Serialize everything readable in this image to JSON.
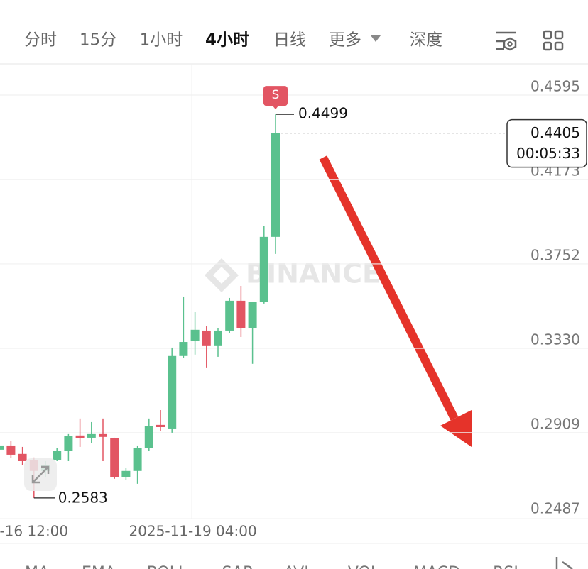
{
  "tabs": [
    "分时",
    "15分",
    "1小时",
    "4小时",
    "日线",
    "更多",
    "深度"
  ],
  "active_tab": 3,
  "indicators": [
    "MA",
    "EMA",
    "BOLL",
    "SAR",
    "AVL",
    "VOL",
    "MACD",
    "RSI"
  ],
  "chart_data": {
    "type": "candlestick",
    "watermark": "BINANCE",
    "signal_label": "S",
    "countdown": "00:05:33",
    "up_color": "#5ac18e",
    "down_color": "#e25563",
    "grid": true,
    "categories": [
      null,
      null,
      null,
      "-16 12:00",
      null,
      null,
      null,
      null,
      null,
      null,
      null,
      null,
      null,
      null,
      null,
      null,
      null,
      "2025-11-19 04:00",
      null,
      null,
      null,
      null,
      null,
      null,
      null
    ],
    "open": [
      0.2824,
      0.2845,
      0.2803,
      0.2774,
      0.2718,
      0.2774,
      0.282,
      0.2895,
      0.2884,
      0.2902,
      0.2881,
      0.2689,
      0.2718,
      0.2831,
      0.2948,
      0.293,
      0.3292,
      0.3369,
      0.3419,
      0.3345,
      0.3419,
      0.3568,
      0.3433,
      0.3561,
      0.3887
    ],
    "high": [
      0.2859,
      0.2867,
      0.2838,
      0.2785,
      0.2767,
      0.2831,
      0.2902,
      0.298,
      0.2962,
      0.298,
      0.2884,
      0.2732,
      0.2845,
      0.298,
      0.3022,
      0.3334,
      0.3589,
      0.3511,
      0.344,
      0.3433,
      0.3582,
      0.3642,
      0.3564,
      0.3943,
      0.4499
    ],
    "low": [
      0.281,
      0.2782,
      0.2746,
      0.2583,
      0.2689,
      0.2767,
      0.2767,
      0.2838,
      0.2856,
      0.2767,
      0.2679,
      0.2672,
      0.2654,
      0.282,
      0.2916,
      0.2909,
      0.3281,
      0.3299,
      0.3235,
      0.3288,
      0.3405,
      0.3387,
      0.3253,
      0.3554,
      0.3802
    ],
    "close": [
      0.2845,
      0.2799,
      0.2767,
      0.2718,
      0.2746,
      0.282,
      0.2891,
      0.2881,
      0.2902,
      0.2888,
      0.2686,
      0.2718,
      0.2831,
      0.2944,
      0.2937,
      0.3292,
      0.3362,
      0.3423,
      0.3345,
      0.3419,
      0.3568,
      0.3433,
      0.3561,
      0.3887,
      0.4405
    ],
    "ylim": [
      0.2487,
      0.4751
    ],
    "yticks": [
      0.4595,
      0.4173,
      0.3752,
      {
        "value": 0.333,
        "label": "0.3330"
      },
      0.2909,
      0.2487
    ]
  }
}
